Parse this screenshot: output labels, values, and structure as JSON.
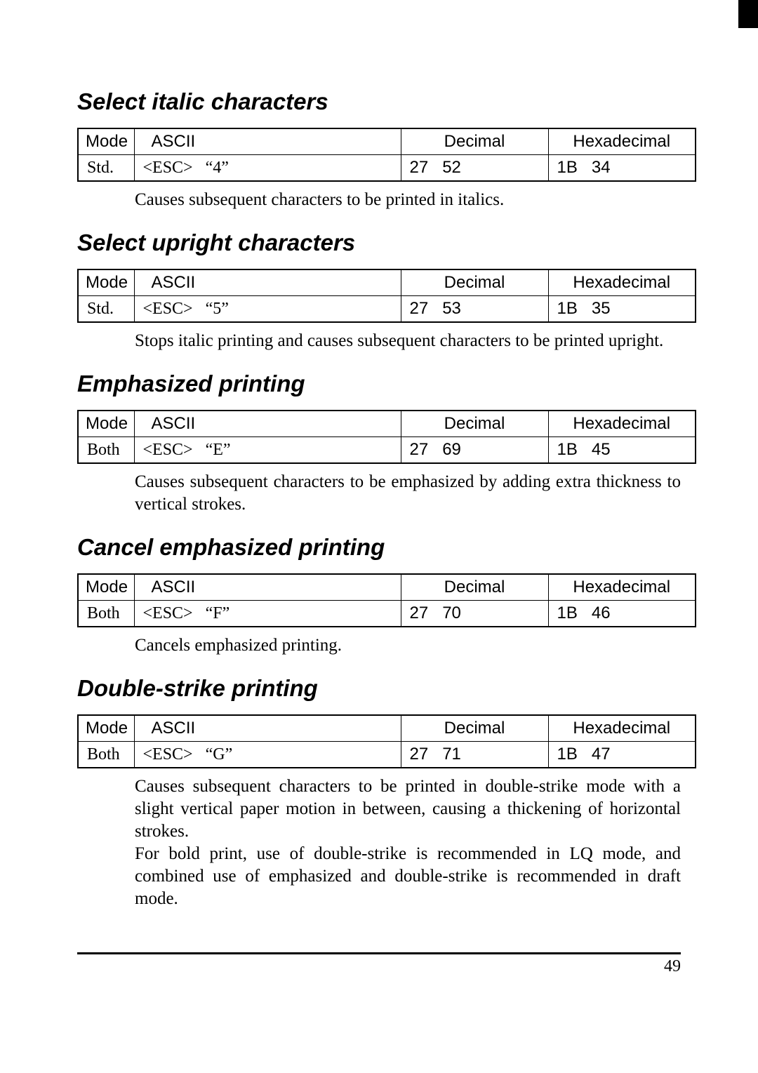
{
  "page_number": "49",
  "table_headers": {
    "mode": "Mode",
    "ascii": "ASCII",
    "decimal": "Decimal",
    "hex": "Hexadecimal"
  },
  "sections": [
    {
      "title": "Select italic characters",
      "row": {
        "mode": "Std.",
        "ascii": "<ESC>   “4”",
        "dec": "27   52",
        "hex": "1B   34"
      },
      "desc": "Causes subsequent characters to be printed in italics."
    },
    {
      "title": "Select upright characters",
      "row": {
        "mode": "Std.",
        "ascii": "<ESC>   “5”",
        "dec": "27   53",
        "hex": "1B   35"
      },
      "desc": "Stops italic printing and causes subsequent characters to be printed upright."
    },
    {
      "title": "Emphasized printing",
      "row": {
        "mode": "Both",
        "ascii": "<ESC>   “E”",
        "dec": "27   69",
        "hex": "1B   45"
      },
      "desc": "Causes subsequent characters to be emphasized by adding extra thickness to vertical strokes."
    },
    {
      "title": "Cancel emphasized printing",
      "row": {
        "mode": "Both",
        "ascii": "<ESC>   “F”",
        "dec": "27   70",
        "hex": "1B   46"
      },
      "desc": "Cancels emphasized printing."
    },
    {
      "title": "Double-strike printing",
      "row": {
        "mode": "Both",
        "ascii": "<ESC>   “G”",
        "dec": "27   71",
        "hex": "1B   47"
      },
      "desc": "Causes subsequent characters to be printed in double-strike mode with a slight vertical paper motion in between, causing a thickening of horizontal strokes.\nFor bold print, use of double-strike is recommended in LQ mode, and combined use of emphasized and double-strike is recommended in draft mode."
    }
  ]
}
